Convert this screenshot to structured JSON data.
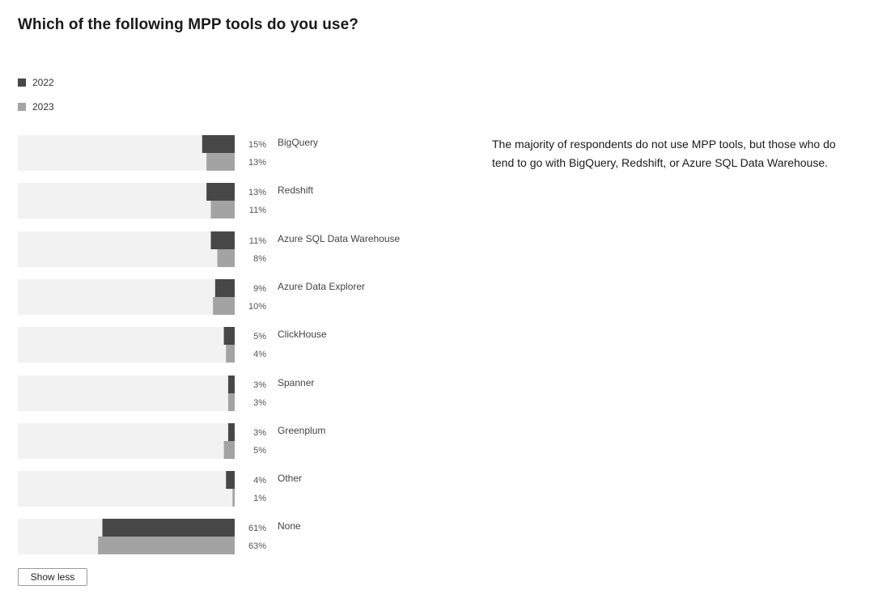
{
  "title": "Which of the following MPP tools do you use?",
  "description": "The majority of respondents do not use MPP tools, but those who do tend to go with BigQuery, Redshift, or Azure SQL Data Warehouse.",
  "show_less_label": "Show less",
  "colors": {
    "series_2022": "#474747",
    "series_2023": "#a3a3a3",
    "track": "#f2f2f2"
  },
  "chart_data": {
    "type": "bar",
    "orientation": "horizontal",
    "title": "Which of the following MPP tools do you use?",
    "legend_position": "top-left",
    "value_unit": "%",
    "xlim": [
      0,
      100
    ],
    "categories": [
      "BigQuery",
      "Redshift",
      "Azure SQL Data Warehouse",
      "Azure Data Explorer",
      "ClickHouse",
      "Spanner",
      "Greenplum",
      "Other",
      "None"
    ],
    "series": [
      {
        "name": "2022",
        "values": [
          15,
          13,
          11,
          9,
          5,
          3,
          3,
          4,
          61
        ],
        "labels": [
          "15%",
          "13%",
          "11%",
          "9%",
          "5%",
          "3%",
          "3%",
          "4%",
          "61%"
        ]
      },
      {
        "name": "2023",
        "values": [
          13,
          11,
          8,
          10,
          4,
          3,
          5,
          1,
          63
        ],
        "labels": [
          "13%",
          "11%",
          "8%",
          "10%",
          "4%",
          "3%",
          "5%",
          "1%",
          "63%"
        ]
      }
    ]
  }
}
